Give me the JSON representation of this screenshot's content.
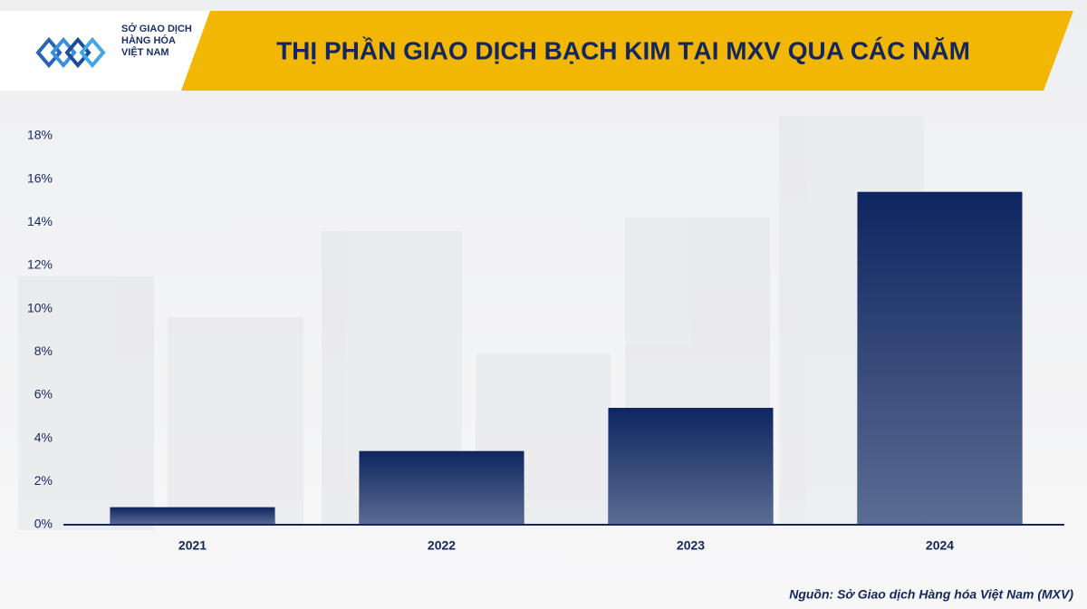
{
  "brand": [
    "SỞ GIAO DỊCH",
    "HÀNG HÓA",
    "VIỆT NAM"
  ],
  "chart_data": {
    "type": "bar",
    "title": "THỊ PHẦN GIAO DỊCH BẠCH KIM TẠI MXV QUA CÁC NĂM",
    "categories": [
      "2021",
      "2022",
      "2023",
      "2024"
    ],
    "values": [
      0.8,
      3.4,
      5.4,
      15.4
    ],
    "color": "#0f2560",
    "ylim": [
      0,
      18
    ],
    "yticks": [
      {
        "value": 0,
        "label": "0%"
      },
      {
        "value": 2,
        "label": "2%"
      },
      {
        "value": 4,
        "label": "4%"
      },
      {
        "value": 6,
        "label": "6%"
      },
      {
        "value": 8,
        "label": "8%"
      },
      {
        "value": 10,
        "label": "10%"
      },
      {
        "value": 12,
        "label": "12%"
      },
      {
        "value": 14,
        "label": "14%"
      },
      {
        "value": 16,
        "label": "16%"
      },
      {
        "value": 18,
        "label": "18%"
      }
    ],
    "grid": false,
    "source": "Nguồn: Sở Giao dịch Hàng hóa Việt Nam (MXV)"
  }
}
